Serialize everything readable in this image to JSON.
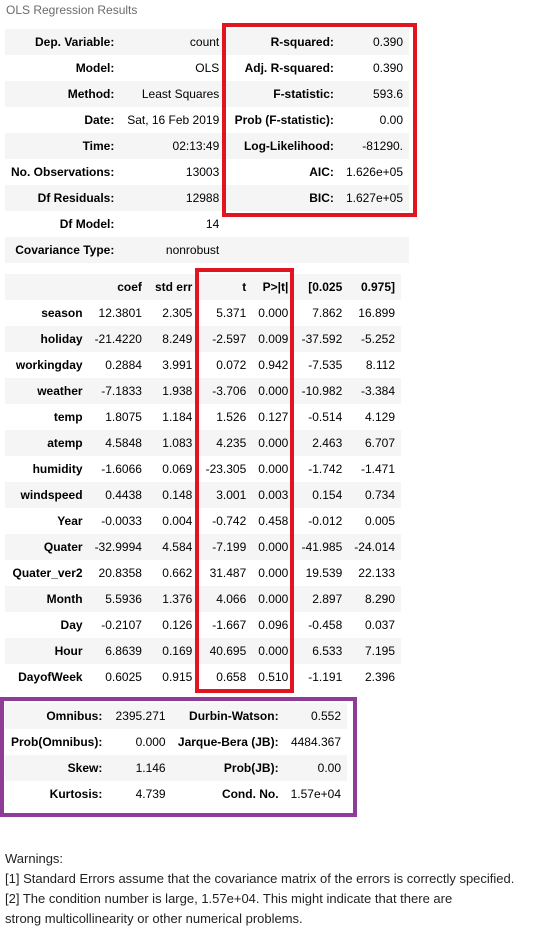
{
  "caption": "OLS Regression Results",
  "summary_rows": [
    {
      "l1": "Dep. Variable:",
      "v1": "count",
      "l2": "R-squared:",
      "v2": "0.390"
    },
    {
      "l1": "Model:",
      "v1": "OLS",
      "l2": "Adj. R-squared:",
      "v2": "0.390"
    },
    {
      "l1": "Method:",
      "v1": "Least Squares",
      "l2": "F-statistic:",
      "v2": "593.6"
    },
    {
      "l1": "Date:",
      "v1": "Sat, 16 Feb 2019",
      "l2": "Prob (F-statistic):",
      "v2": "0.00"
    },
    {
      "l1": "Time:",
      "v1": "02:13:49",
      "l2": "Log-Likelihood:",
      "v2": "-81290."
    },
    {
      "l1": "No. Observations:",
      "v1": "13003",
      "l2": "AIC:",
      "v2": "1.626e+05"
    },
    {
      "l1": "Df Residuals:",
      "v1": "12988",
      "l2": "BIC:",
      "v2": "1.627e+05"
    },
    {
      "l1": "Df Model:",
      "v1": "14",
      "l2": "",
      "v2": ""
    },
    {
      "l1": "Covariance Type:",
      "v1": "nonrobust",
      "l2": "",
      "v2": ""
    }
  ],
  "coef_headers": [
    "",
    "coef",
    "std err",
    "t",
    "P>|t|",
    "[0.025",
    "0.975]"
  ],
  "coef_rows": [
    [
      "season",
      "12.3801",
      "2.305",
      "5.371",
      "0.000",
      "7.862",
      "16.899"
    ],
    [
      "holiday",
      "-21.4220",
      "8.249",
      "-2.597",
      "0.009",
      "-37.592",
      "-5.252"
    ],
    [
      "workingday",
      "0.2884",
      "3.991",
      "0.072",
      "0.942",
      "-7.535",
      "8.112"
    ],
    [
      "weather",
      "-7.1833",
      "1.938",
      "-3.706",
      "0.000",
      "-10.982",
      "-3.384"
    ],
    [
      "temp",
      "1.8075",
      "1.184",
      "1.526",
      "0.127",
      "-0.514",
      "4.129"
    ],
    [
      "atemp",
      "4.5848",
      "1.083",
      "4.235",
      "0.000",
      "2.463",
      "6.707"
    ],
    [
      "humidity",
      "-1.6066",
      "0.069",
      "-23.305",
      "0.000",
      "-1.742",
      "-1.471"
    ],
    [
      "windspeed",
      "0.4438",
      "0.148",
      "3.001",
      "0.003",
      "0.154",
      "0.734"
    ],
    [
      "Year",
      "-0.0033",
      "0.004",
      "-0.742",
      "0.458",
      "-0.012",
      "0.005"
    ],
    [
      "Quater",
      "-32.9994",
      "4.584",
      "-7.199",
      "0.000",
      "-41.985",
      "-24.014"
    ],
    [
      "Quater_ver2",
      "20.8358",
      "0.662",
      "31.487",
      "0.000",
      "19.539",
      "22.133"
    ],
    [
      "Month",
      "5.5936",
      "1.376",
      "4.066",
      "0.000",
      "2.897",
      "8.290"
    ],
    [
      "Day",
      "-0.2107",
      "0.126",
      "-1.667",
      "0.096",
      "-0.458",
      "0.037"
    ],
    [
      "Hour",
      "6.8639",
      "0.169",
      "40.695",
      "0.000",
      "6.533",
      "7.195"
    ],
    [
      "DayofWeek",
      "0.6025",
      "0.915",
      "0.658",
      "0.510",
      "-1.191",
      "2.396"
    ]
  ],
  "diag_rows": [
    {
      "l1": "Omnibus:",
      "v1": "2395.271",
      "l2": "Durbin-Watson:",
      "v2": "0.552"
    },
    {
      "l1": "Prob(Omnibus):",
      "v1": "0.000",
      "l2": "Jarque-Bera (JB):",
      "v2": "4484.367"
    },
    {
      "l1": "Skew:",
      "v1": "1.146",
      "l2": "Prob(JB):",
      "v2": "0.00"
    },
    {
      "l1": "Kurtosis:",
      "v1": "4.739",
      "l2": "Cond. No.",
      "v2": "1.57e+04"
    }
  ],
  "warnings": {
    "title": "Warnings:",
    "line1": "[1] Standard Errors assume that the covariance matrix of the errors is correctly specified.",
    "line2": "[2] The condition number is large, 1.57e+04. This might indicate that there are",
    "line3": "strong multicollinearity or other numerical problems."
  },
  "highlight_colors": {
    "red": "#e0151f",
    "purple": "#8e3c97"
  }
}
